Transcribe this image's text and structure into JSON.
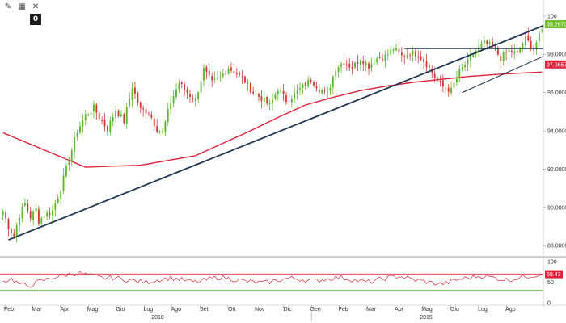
{
  "toolbar": {
    "pencil_icon": "pencil-icon",
    "grid_icon": "grid-icon",
    "close_icon": "close-icon",
    "zero_label": "0"
  },
  "colors": {
    "up_candle": "#5cb82a",
    "down_candle": "#d23a3a",
    "ma_line": "#e0233a",
    "trend_line": "#1f3550",
    "rsi_line": "#d8283a",
    "rsi_upper": "#d8283a",
    "rsi_lower": "#5cb82a",
    "last_price_badge": "#6fbf2a",
    "ma_badge": "#e0233a",
    "rsi_badge": "#e0233a"
  },
  "chart_data": [
    {
      "type": "candlestick",
      "title": "",
      "xlabel": "",
      "ylabel": "",
      "ylim": [
        87.5,
        100.5
      ],
      "yticks": [
        88,
        90,
        92,
        94,
        96,
        98,
        100
      ],
      "ytick_labels": [
        "88.0000",
        "90.0000",
        "92.0000",
        "94.0000",
        "96.0000",
        "98.0000",
        "100"
      ],
      "months": [
        "Feb",
        "Mar",
        "Apr",
        "Mag",
        "Giu",
        "Lug",
        "Ago",
        "Set",
        "Ott",
        "Nov",
        "Dic",
        "Gen",
        "Feb",
        "Mar",
        "Apr",
        "Mag",
        "Giu",
        "Lug",
        "Ago"
      ],
      "years": [
        "2018",
        "2019"
      ],
      "last_price_label": "99.2670",
      "ma_value_label": "97.0657",
      "close_anchors": {
        "x": [
          0,
          2,
          4,
          6,
          8,
          10,
          12,
          13,
          15,
          18,
          21,
          24,
          27,
          30,
          33,
          36,
          38,
          41,
          44,
          47,
          50,
          53,
          56,
          58,
          61,
          64,
          67,
          70,
          73,
          76,
          79,
          82,
          85,
          88,
          91,
          94,
          97,
          100,
          103,
          106,
          109,
          112,
          115,
          118,
          121,
          124,
          127,
          130,
          133,
          136,
          139,
          142,
          145,
          148,
          151,
          154,
          157,
          160,
          163,
          166,
          169,
          172,
          175,
          178,
          181,
          184,
          187,
          190,
          193,
          196
        ],
        "y": [
          89.8,
          89.0,
          88.5,
          89.6,
          90.2,
          89.5,
          89.9,
          89.3,
          89.6,
          89.8,
          91.0,
          92.5,
          94.0,
          94.8,
          95.2,
          94.5,
          94.1,
          95.1,
          94.5,
          96.3,
          95.1,
          95.0,
          94.1,
          93.9,
          95.5,
          96.5,
          96.0,
          95.6,
          97.2,
          96.5,
          96.8,
          97.3,
          97.0,
          96.6,
          96.0,
          95.7,
          95.3,
          96.2,
          95.6,
          95.9,
          96.3,
          96.7,
          96.2,
          95.9,
          97.3,
          97.6,
          97.3,
          97.8,
          97.4,
          97.8,
          97.9,
          98.3,
          97.9,
          98.1,
          98.0,
          97.5,
          96.8,
          96.3,
          96.1,
          97.1,
          97.6,
          98.2,
          98.6,
          98.4,
          97.8,
          98.2,
          98.0,
          98.8,
          98.3,
          99.27
        ]
      },
      "moving_average": {
        "x": [
          0,
          20,
          30,
          50,
          70,
          90,
          100,
          110,
          120,
          130,
          140,
          150,
          160,
          170,
          180,
          190,
          196
        ],
        "y": [
          93.9,
          92.7,
          92.1,
          92.2,
          92.7,
          94.0,
          94.7,
          95.35,
          95.75,
          96.1,
          96.35,
          96.55,
          96.7,
          96.85,
          96.95,
          97.03,
          97.07
        ]
      },
      "trend_lines": [
        {
          "name": "main",
          "x": [
            2,
            196
          ],
          "y": [
            88.3,
            99.5
          ]
        },
        {
          "name": "resistance",
          "x": [
            146,
            196
          ],
          "y": [
            98.3,
            98.3
          ]
        },
        {
          "name": "minor",
          "x": [
            167,
            196
          ],
          "y": [
            96.0,
            97.9
          ]
        }
      ]
    },
    {
      "type": "line",
      "title": "",
      "ylim": [
        0,
        100
      ],
      "yticks": [
        0,
        50,
        100
      ],
      "ytick_labels": [
        "0",
        "50",
        "100"
      ],
      "levels": {
        "upper": 70,
        "lower": 30
      },
      "last_value_label": "69.43",
      "values_hint": [
        52,
        58,
        45,
        40,
        50,
        55,
        62,
        66,
        70,
        72,
        68,
        63,
        60,
        62,
        58,
        55,
        52,
        50,
        54,
        58,
        60,
        57,
        52,
        50,
        55,
        60,
        62,
        58,
        55,
        52,
        50,
        48,
        52,
        56,
        60,
        58,
        55,
        53,
        56,
        60,
        62,
        58,
        54,
        50,
        52,
        58,
        62,
        65,
        60,
        55,
        52,
        48,
        45,
        50,
        56,
        60,
        63,
        66,
        62,
        58,
        55,
        60,
        64,
        66,
        69.43
      ]
    }
  ]
}
